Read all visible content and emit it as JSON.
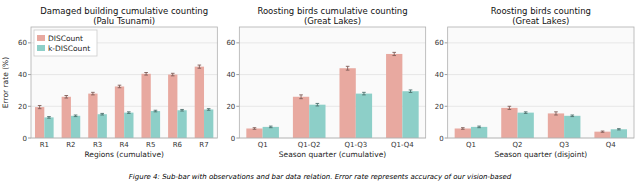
{
  "chart_data": [
    {
      "type": "bar",
      "title": "Damaged building cumulative counting\n(Palu Tsunami)",
      "xlabel": "Regions (cumulative)",
      "ylabel": "Error rate (%)",
      "categories": [
        "R1",
        "R2",
        "R3",
        "R4",
        "R5",
        "R6",
        "R7"
      ],
      "series": [
        {
          "name": "DISCount",
          "color": "#e8a9a0",
          "values": [
            19.5,
            26.0,
            28.0,
            32.5,
            40.5,
            40.0,
            45.0
          ],
          "errors": [
            1.0,
            0.8,
            0.8,
            0.8,
            0.8,
            0.8,
            1.0
          ]
        },
        {
          "name": "k-DISCount",
          "color": "#8dcfc8",
          "values": [
            13.0,
            14.0,
            15.0,
            16.0,
            17.0,
            17.5,
            18.0
          ],
          "errors": [
            0.5,
            0.5,
            0.5,
            0.5,
            0.5,
            0.5,
            0.5
          ]
        }
      ],
      "ylim": [
        0,
        70
      ],
      "yticks": [
        0,
        20,
        40,
        60
      ],
      "grid": true,
      "legend": "upper-left"
    },
    {
      "type": "bar",
      "title": "Roosting birds cumulative counting\n(Great Lakes)",
      "xlabel": "Season quarter (cumulative)",
      "categories": [
        "Q1",
        "Q1-Q2",
        "Q1-Q3",
        "Q1-Q4"
      ],
      "series": [
        {
          "color": "#e8a9a0",
          "values": [
            6.0,
            26.0,
            44.0,
            53.0
          ],
          "errors": [
            0.5,
            1.2,
            1.2,
            1.0
          ]
        },
        {
          "color": "#8dcfc8",
          "values": [
            7.0,
            21.0,
            28.0,
            29.5
          ],
          "errors": [
            0.5,
            0.8,
            0.8,
            0.8
          ]
        }
      ],
      "ylim": [
        0,
        70
      ],
      "yticks": [
        0,
        20,
        40,
        60
      ],
      "grid": true
    },
    {
      "type": "bar",
      "title": "Roosting birds counting\n(Great Lakes)",
      "xlabel": "Season quarter (disjoint)",
      "categories": [
        "Q1",
        "Q2",
        "Q3",
        "Q4"
      ],
      "series": [
        {
          "color": "#e8a9a0",
          "values": [
            6.0,
            19.0,
            15.5,
            4.0
          ],
          "errors": [
            0.5,
            1.0,
            1.0,
            0.4
          ]
        },
        {
          "color": "#8dcfc8",
          "values": [
            7.0,
            16.0,
            14.0,
            5.5
          ],
          "errors": [
            0.5,
            0.5,
            0.5,
            0.4
          ]
        }
      ],
      "ylim": [
        0,
        70
      ],
      "yticks": [
        0,
        20,
        40,
        60
      ],
      "grid": true
    }
  ],
  "caption": "Figure 4: Sub-bar with observations and bar data relation. Error rate represents accuracy of our vision-based"
}
